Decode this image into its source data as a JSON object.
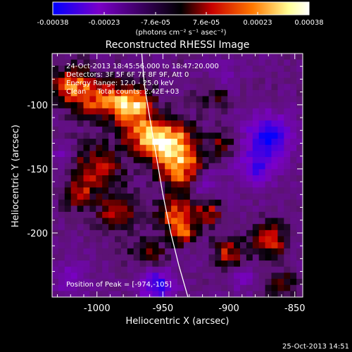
{
  "colorbar": {
    "ticks": [
      "-0.00038",
      "-0.00023",
      "-7.6e-05",
      "7.6e-05",
      "0.00023",
      "0.00038"
    ],
    "unit_label": "(photons cm⁻² s⁻¹ asec⁻²)",
    "range": [
      -0.00038,
      0.00038
    ],
    "colormap": [
      "#0000ff",
      "#7a00c8",
      "#000000",
      "#c80000",
      "#ff7800",
      "#ffff96",
      "#ffffff"
    ]
  },
  "title": "Reconstructed RHESSI Image",
  "info": {
    "line1": "24-Oct-2013 18:45:56.000 to 18:47:20.000",
    "line2": "Detectors: 3F 5F 6F 7F 8F 9F, Att 0",
    "line3": "Energy Range: 12.0 - 25.0 keV",
    "line4": "Clean     Total counts: 2.42E+03"
  },
  "peak_label": "Position of Peak = [-974,-105]",
  "xlabel": "Heliocentric X (arcsec)",
  "ylabel": "Heliocentric Y (arcsec)",
  "footer_timestamp": "25-Oct-2013 14:51",
  "chart_data": {
    "type": "heatmap",
    "title": "Reconstructed RHESSI Image",
    "xlabel": "Heliocentric X (arcsec)",
    "ylabel": "Heliocentric Y (arcsec)",
    "xlim": [
      -1034,
      -844
    ],
    "ylim": [
      -250,
      -60
    ],
    "x_ticks": [
      -1000,
      -950,
      -900,
      -850
    ],
    "x_tick_labels": [
      "-1000",
      "-950",
      "-900",
      "-850"
    ],
    "y_ticks": [
      -100,
      -150,
      -200
    ],
    "y_tick_labels": [
      "-100",
      "-150",
      "-200"
    ],
    "value_range": [
      -0.00038,
      0.00038
    ],
    "peak": {
      "x": -974,
      "y": -105
    },
    "grid_size": [
      40,
      40
    ],
    "limb_line": [
      [
        -966,
        -60
      ],
      [
        -964,
        -85
      ],
      [
        -960,
        -110
      ],
      [
        -955,
        -140
      ],
      [
        -950,
        -170
      ],
      [
        -944,
        -200
      ],
      [
        -938,
        -225
      ],
      [
        -931,
        -250
      ]
    ],
    "bright_regions": [
      {
        "x": -1020,
        "y": -85,
        "sigma": 10,
        "amp": 0.00026
      },
      {
        "x": -1000,
        "y": -95,
        "sigma": 10,
        "amp": 0.00024
      },
      {
        "x": -975,
        "y": -100,
        "sigma": 11,
        "amp": 0.00038
      },
      {
        "x": -965,
        "y": -125,
        "sigma": 10,
        "amp": 0.00022
      },
      {
        "x": -945,
        "y": -130,
        "sigma": 12,
        "amp": 0.00036
      },
      {
        "x": -935,
        "y": -150,
        "sigma": 11,
        "amp": 0.00026
      },
      {
        "x": -1000,
        "y": -150,
        "sigma": 13,
        "amp": 0.00018
      },
      {
        "x": -1015,
        "y": -170,
        "sigma": 8,
        "amp": 0.00015
      },
      {
        "x": -985,
        "y": -185,
        "sigma": 10,
        "amp": 0.00017
      },
      {
        "x": -940,
        "y": -185,
        "sigma": 9,
        "amp": 0.00025
      },
      {
        "x": -935,
        "y": -200,
        "sigma": 6,
        "amp": 0.00022
      },
      {
        "x": -915,
        "y": -185,
        "sigma": 7,
        "amp": 0.00018
      },
      {
        "x": -900,
        "y": -215,
        "sigma": 8,
        "amp": 0.00019
      },
      {
        "x": -870,
        "y": -205,
        "sigma": 9,
        "amp": 0.00022
      },
      {
        "x": -960,
        "y": -218,
        "sigma": 10,
        "amp": 0.00012
      },
      {
        "x": -910,
        "y": -90,
        "sigma": 8,
        "amp": 0.00014
      },
      {
        "x": -905,
        "y": -130,
        "sigma": 7,
        "amp": 0.00012
      },
      {
        "x": -860,
        "y": -240,
        "sigma": 7,
        "amp": 0.00013
      }
    ],
    "negative_regions": [
      {
        "x": -870,
        "y": -125,
        "sigma": 12,
        "amp": 0.00028
      },
      {
        "x": -880,
        "y": -150,
        "sigma": 10,
        "amp": 0.00018
      },
      {
        "x": -955,
        "y": -240,
        "sigma": 10,
        "amp": 0.00025
      },
      {
        "x": -920,
        "y": -160,
        "sigma": 8,
        "amp": 0.00014
      },
      {
        "x": -1020,
        "y": -235,
        "sigma": 9,
        "amp": 0.00012
      },
      {
        "x": -905,
        "y": -80,
        "sigma": 8,
        "amp": 0.00012
      },
      {
        "x": -1025,
        "y": -140,
        "sigma": 6,
        "amp": 0.0001
      },
      {
        "x": -890,
        "y": -235,
        "sigma": 7,
        "amp": 0.0001
      }
    ]
  }
}
